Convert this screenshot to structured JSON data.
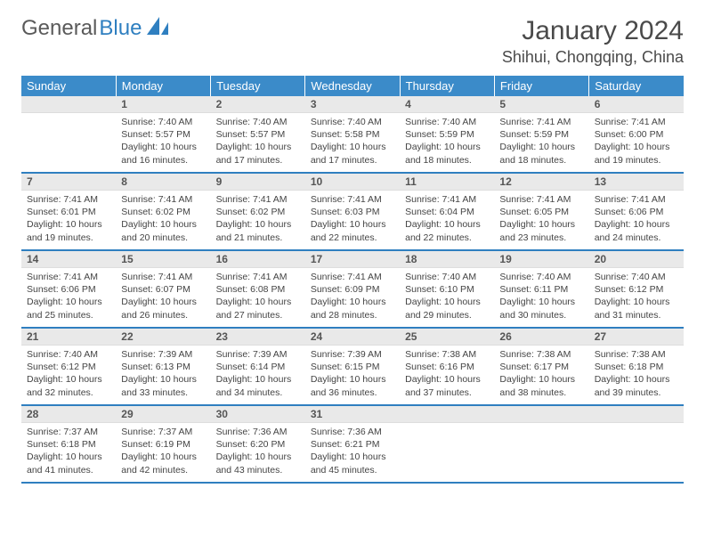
{
  "logo": {
    "text1": "General",
    "text2": "Blue"
  },
  "title": "January 2024",
  "location": "Shihui, Chongqing, China",
  "colors": {
    "header_bg": "#3b8bc9",
    "header_text": "#ffffff",
    "row_border": "#2f7fc0",
    "daynum_bg": "#e9e9e9",
    "text": "#444444"
  },
  "day_headers": [
    "Sunday",
    "Monday",
    "Tuesday",
    "Wednesday",
    "Thursday",
    "Friday",
    "Saturday"
  ],
  "weeks": [
    [
      null,
      {
        "n": "1",
        "sr": "Sunrise: 7:40 AM",
        "ss": "Sunset: 5:57 PM",
        "d1": "Daylight: 10 hours",
        "d2": "and 16 minutes."
      },
      {
        "n": "2",
        "sr": "Sunrise: 7:40 AM",
        "ss": "Sunset: 5:57 PM",
        "d1": "Daylight: 10 hours",
        "d2": "and 17 minutes."
      },
      {
        "n": "3",
        "sr": "Sunrise: 7:40 AM",
        "ss": "Sunset: 5:58 PM",
        "d1": "Daylight: 10 hours",
        "d2": "and 17 minutes."
      },
      {
        "n": "4",
        "sr": "Sunrise: 7:40 AM",
        "ss": "Sunset: 5:59 PM",
        "d1": "Daylight: 10 hours",
        "d2": "and 18 minutes."
      },
      {
        "n": "5",
        "sr": "Sunrise: 7:41 AM",
        "ss": "Sunset: 5:59 PM",
        "d1": "Daylight: 10 hours",
        "d2": "and 18 minutes."
      },
      {
        "n": "6",
        "sr": "Sunrise: 7:41 AM",
        "ss": "Sunset: 6:00 PM",
        "d1": "Daylight: 10 hours",
        "d2": "and 19 minutes."
      }
    ],
    [
      {
        "n": "7",
        "sr": "Sunrise: 7:41 AM",
        "ss": "Sunset: 6:01 PM",
        "d1": "Daylight: 10 hours",
        "d2": "and 19 minutes."
      },
      {
        "n": "8",
        "sr": "Sunrise: 7:41 AM",
        "ss": "Sunset: 6:02 PM",
        "d1": "Daylight: 10 hours",
        "d2": "and 20 minutes."
      },
      {
        "n": "9",
        "sr": "Sunrise: 7:41 AM",
        "ss": "Sunset: 6:02 PM",
        "d1": "Daylight: 10 hours",
        "d2": "and 21 minutes."
      },
      {
        "n": "10",
        "sr": "Sunrise: 7:41 AM",
        "ss": "Sunset: 6:03 PM",
        "d1": "Daylight: 10 hours",
        "d2": "and 22 minutes."
      },
      {
        "n": "11",
        "sr": "Sunrise: 7:41 AM",
        "ss": "Sunset: 6:04 PM",
        "d1": "Daylight: 10 hours",
        "d2": "and 22 minutes."
      },
      {
        "n": "12",
        "sr": "Sunrise: 7:41 AM",
        "ss": "Sunset: 6:05 PM",
        "d1": "Daylight: 10 hours",
        "d2": "and 23 minutes."
      },
      {
        "n": "13",
        "sr": "Sunrise: 7:41 AM",
        "ss": "Sunset: 6:06 PM",
        "d1": "Daylight: 10 hours",
        "d2": "and 24 minutes."
      }
    ],
    [
      {
        "n": "14",
        "sr": "Sunrise: 7:41 AM",
        "ss": "Sunset: 6:06 PM",
        "d1": "Daylight: 10 hours",
        "d2": "and 25 minutes."
      },
      {
        "n": "15",
        "sr": "Sunrise: 7:41 AM",
        "ss": "Sunset: 6:07 PM",
        "d1": "Daylight: 10 hours",
        "d2": "and 26 minutes."
      },
      {
        "n": "16",
        "sr": "Sunrise: 7:41 AM",
        "ss": "Sunset: 6:08 PM",
        "d1": "Daylight: 10 hours",
        "d2": "and 27 minutes."
      },
      {
        "n": "17",
        "sr": "Sunrise: 7:41 AM",
        "ss": "Sunset: 6:09 PM",
        "d1": "Daylight: 10 hours",
        "d2": "and 28 minutes."
      },
      {
        "n": "18",
        "sr": "Sunrise: 7:40 AM",
        "ss": "Sunset: 6:10 PM",
        "d1": "Daylight: 10 hours",
        "d2": "and 29 minutes."
      },
      {
        "n": "19",
        "sr": "Sunrise: 7:40 AM",
        "ss": "Sunset: 6:11 PM",
        "d1": "Daylight: 10 hours",
        "d2": "and 30 minutes."
      },
      {
        "n": "20",
        "sr": "Sunrise: 7:40 AM",
        "ss": "Sunset: 6:12 PM",
        "d1": "Daylight: 10 hours",
        "d2": "and 31 minutes."
      }
    ],
    [
      {
        "n": "21",
        "sr": "Sunrise: 7:40 AM",
        "ss": "Sunset: 6:12 PM",
        "d1": "Daylight: 10 hours",
        "d2": "and 32 minutes."
      },
      {
        "n": "22",
        "sr": "Sunrise: 7:39 AM",
        "ss": "Sunset: 6:13 PM",
        "d1": "Daylight: 10 hours",
        "d2": "and 33 minutes."
      },
      {
        "n": "23",
        "sr": "Sunrise: 7:39 AM",
        "ss": "Sunset: 6:14 PM",
        "d1": "Daylight: 10 hours",
        "d2": "and 34 minutes."
      },
      {
        "n": "24",
        "sr": "Sunrise: 7:39 AM",
        "ss": "Sunset: 6:15 PM",
        "d1": "Daylight: 10 hours",
        "d2": "and 36 minutes."
      },
      {
        "n": "25",
        "sr": "Sunrise: 7:38 AM",
        "ss": "Sunset: 6:16 PM",
        "d1": "Daylight: 10 hours",
        "d2": "and 37 minutes."
      },
      {
        "n": "26",
        "sr": "Sunrise: 7:38 AM",
        "ss": "Sunset: 6:17 PM",
        "d1": "Daylight: 10 hours",
        "d2": "and 38 minutes."
      },
      {
        "n": "27",
        "sr": "Sunrise: 7:38 AM",
        "ss": "Sunset: 6:18 PM",
        "d1": "Daylight: 10 hours",
        "d2": "and 39 minutes."
      }
    ],
    [
      {
        "n": "28",
        "sr": "Sunrise: 7:37 AM",
        "ss": "Sunset: 6:18 PM",
        "d1": "Daylight: 10 hours",
        "d2": "and 41 minutes."
      },
      {
        "n": "29",
        "sr": "Sunrise: 7:37 AM",
        "ss": "Sunset: 6:19 PM",
        "d1": "Daylight: 10 hours",
        "d2": "and 42 minutes."
      },
      {
        "n": "30",
        "sr": "Sunrise: 7:36 AM",
        "ss": "Sunset: 6:20 PM",
        "d1": "Daylight: 10 hours",
        "d2": "and 43 minutes."
      },
      {
        "n": "31",
        "sr": "Sunrise: 7:36 AM",
        "ss": "Sunset: 6:21 PM",
        "d1": "Daylight: 10 hours",
        "d2": "and 45 minutes."
      },
      null,
      null,
      null
    ]
  ]
}
